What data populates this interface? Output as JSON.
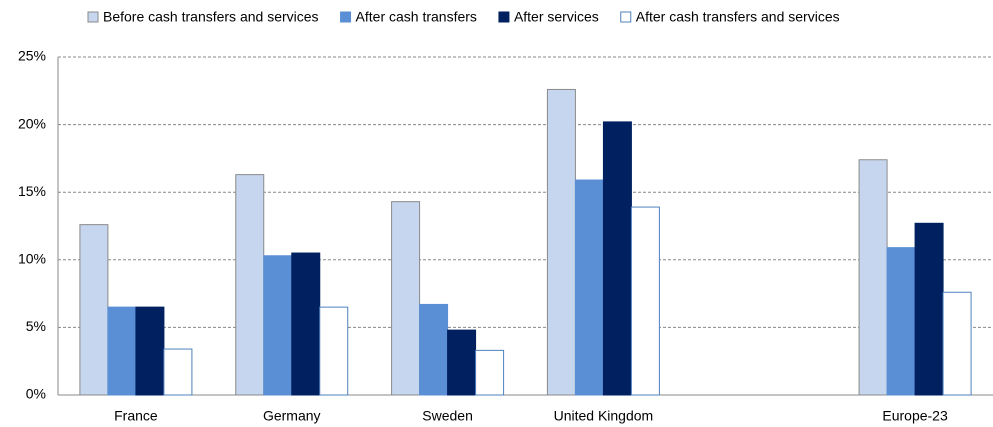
{
  "chart_data": {
    "type": "bar",
    "categories": [
      "France",
      "Germany",
      "Sweden",
      "United Kingdom",
      null,
      "Europe-23"
    ],
    "series": [
      {
        "name": "Before cash transfers and services",
        "color": "#c6d6ee",
        "values": [
          12.6,
          16.3,
          14.3,
          22.6,
          null,
          17.4
        ]
      },
      {
        "name": "After cash transfers",
        "color": "#5a8fd6",
        "values": [
          6.5,
          10.3,
          6.7,
          15.9,
          null,
          10.9
        ]
      },
      {
        "name": "After services",
        "color": "#002060",
        "values": [
          6.5,
          10.5,
          4.8,
          20.2,
          null,
          12.7
        ]
      },
      {
        "name": "After cash transfers and services",
        "color": "#ffffff",
        "values": [
          3.4,
          6.5,
          3.3,
          13.9,
          null,
          7.6
        ]
      }
    ],
    "ylim": [
      0,
      25
    ],
    "yticks": [
      {
        "value": 0,
        "label": "0%"
      },
      {
        "value": 5,
        "label": "5%"
      },
      {
        "value": 10,
        "label": "10%"
      },
      {
        "value": 15,
        "label": "15%"
      },
      {
        "value": 20,
        "label": "20%"
      },
      {
        "value": 25,
        "label": "25%"
      }
    ],
    "grid": true,
    "legend": "top"
  }
}
